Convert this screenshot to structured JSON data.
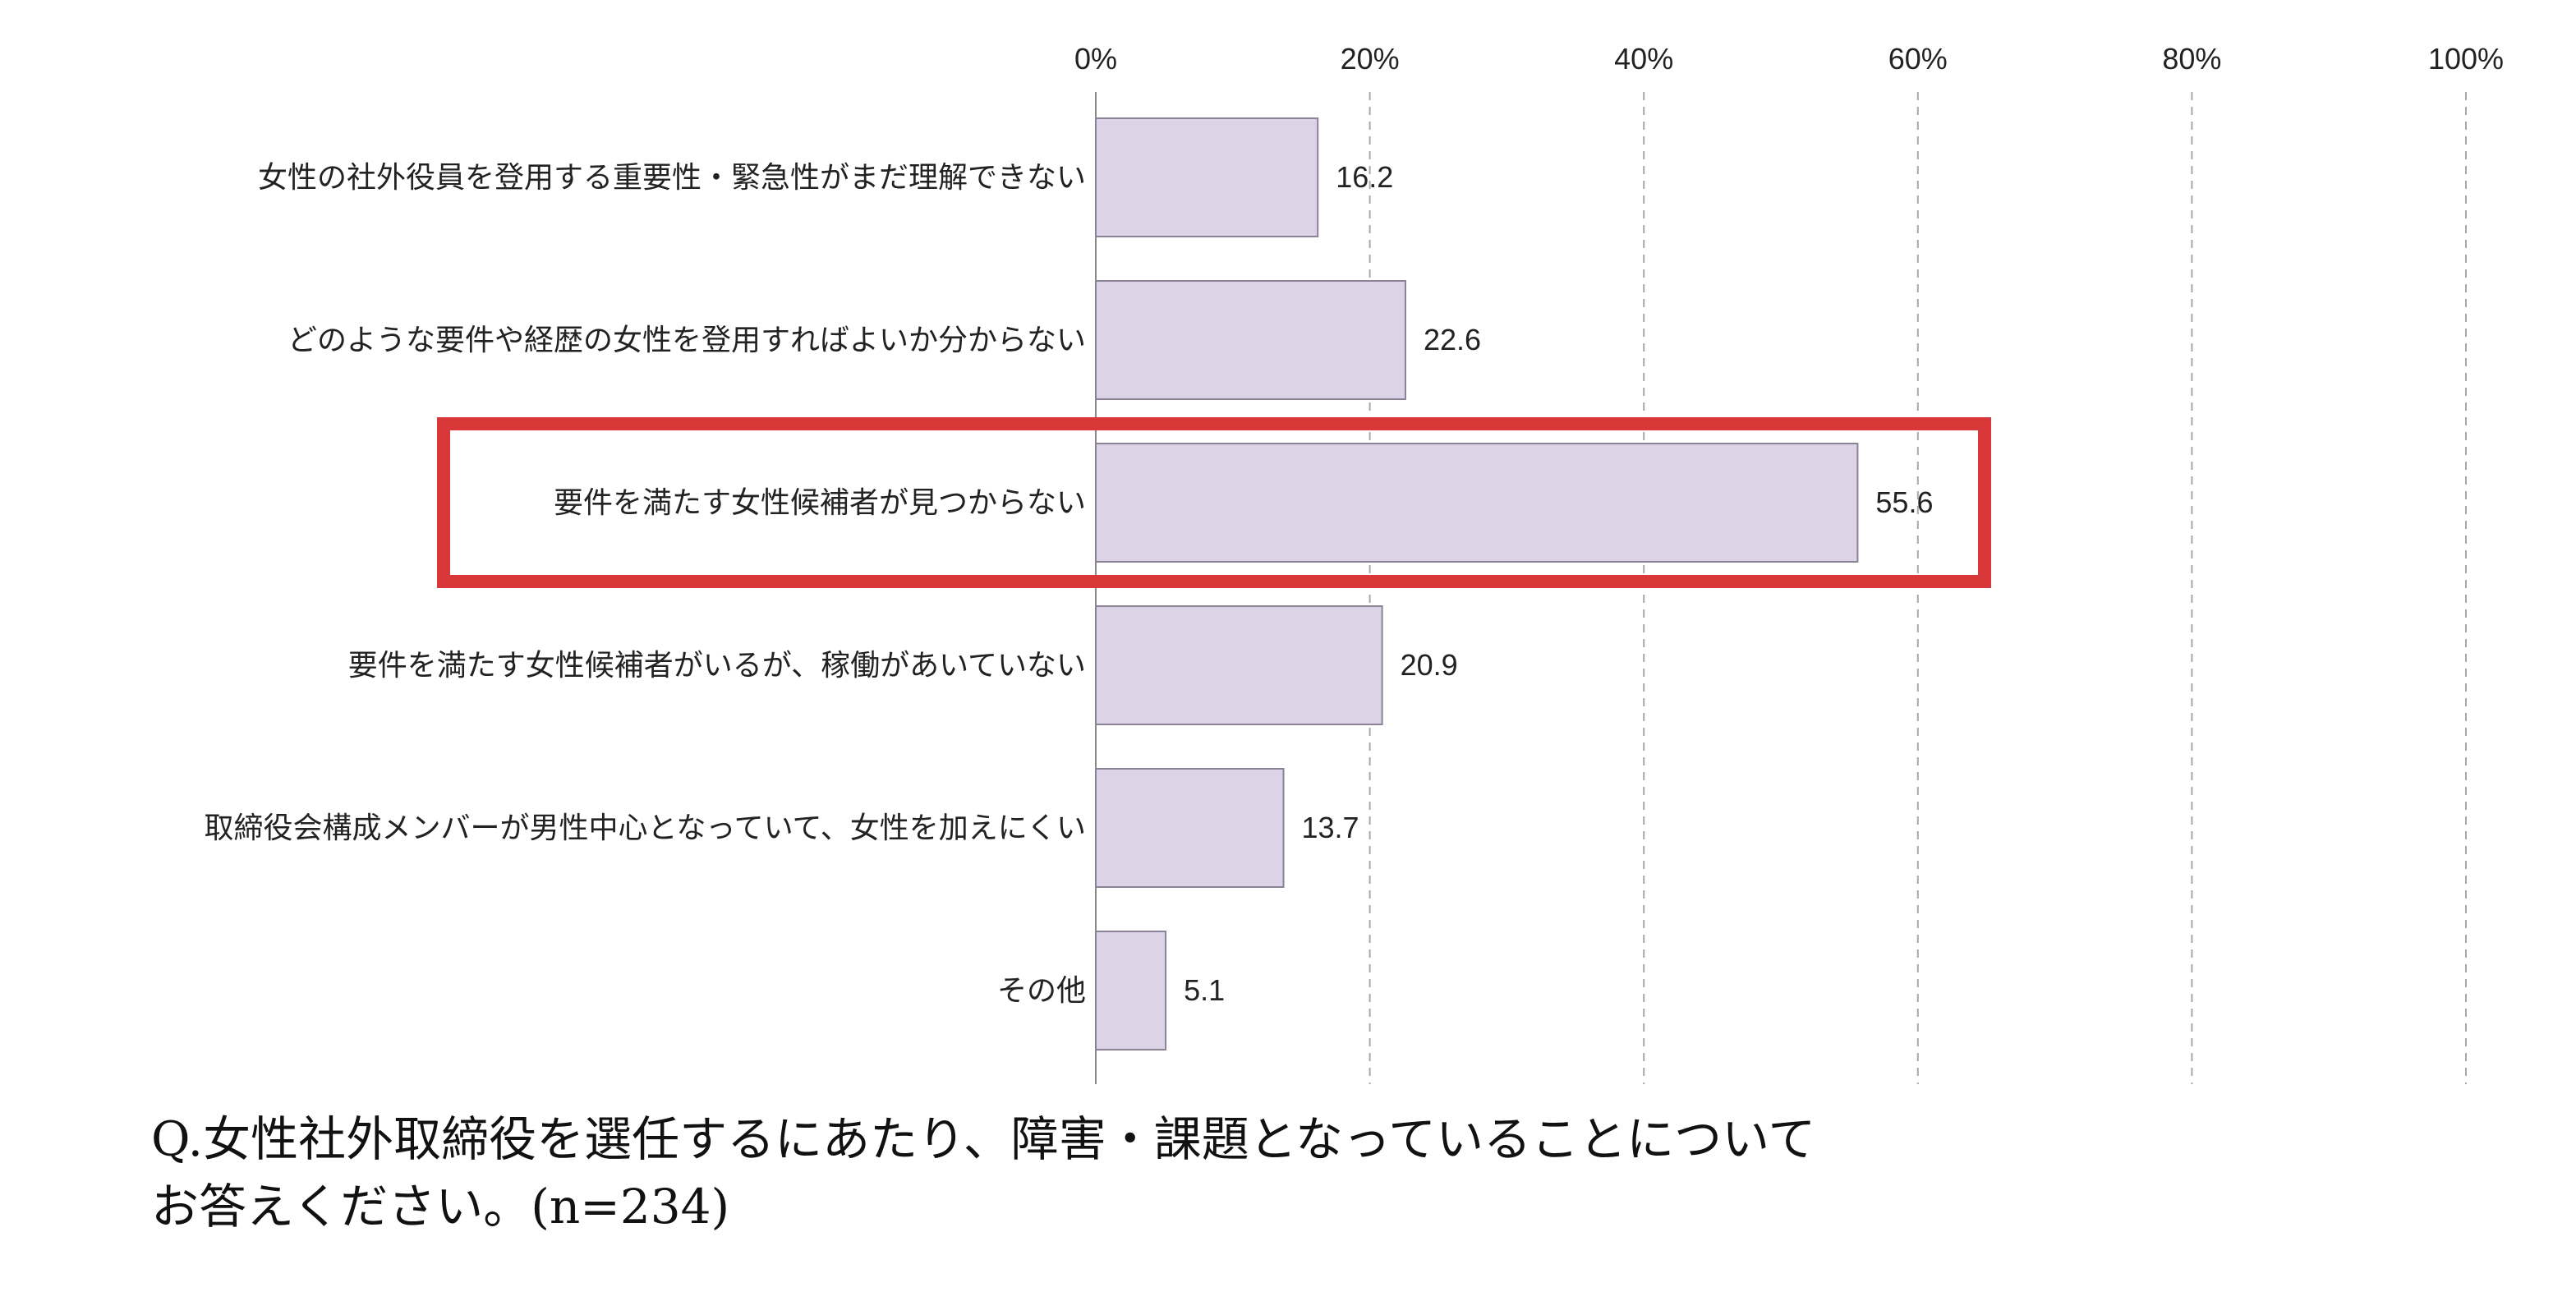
{
  "chart_data": {
    "type": "bar",
    "orientation": "horizontal",
    "categories": [
      "女性の社外役員を登用する重要性・緊急性がまだ理解できない",
      "どのような要件や経歴の女性を登用すればよいか分からない",
      "要件を満たす女性候補者が見つからない",
      "要件を満たす女性候補者がいるが、稼働があいていない",
      "取締役会構成メンバーが男性中心となっていて、女性を加えにくい",
      "その他"
    ],
    "values": [
      16.2,
      22.6,
      55.6,
      20.9,
      13.7,
      5.1
    ],
    "value_labels": [
      "16.2",
      "22.6",
      "55.6",
      "20.9",
      "13.7",
      "5.1"
    ],
    "xlim": [
      0,
      100
    ],
    "x_ticks": [
      "0%",
      "20%",
      "40%",
      "60%",
      "80%",
      "100%"
    ],
    "tick_values": [
      0,
      20,
      40,
      60,
      80,
      100
    ],
    "grid": "vertical dashed",
    "highlighted_category_index": 2,
    "colors": {
      "bar": "#ddd3e6",
      "bar_border": "#8a8296",
      "highlight": "#d93838",
      "grid": "#a8a8a8",
      "axis": "#888888"
    }
  },
  "question": {
    "line1": "Q.女性社外取締役を選任するにあたり、障害・課題となっていることについて",
    "line2": "お答えください。(n=234)"
  }
}
